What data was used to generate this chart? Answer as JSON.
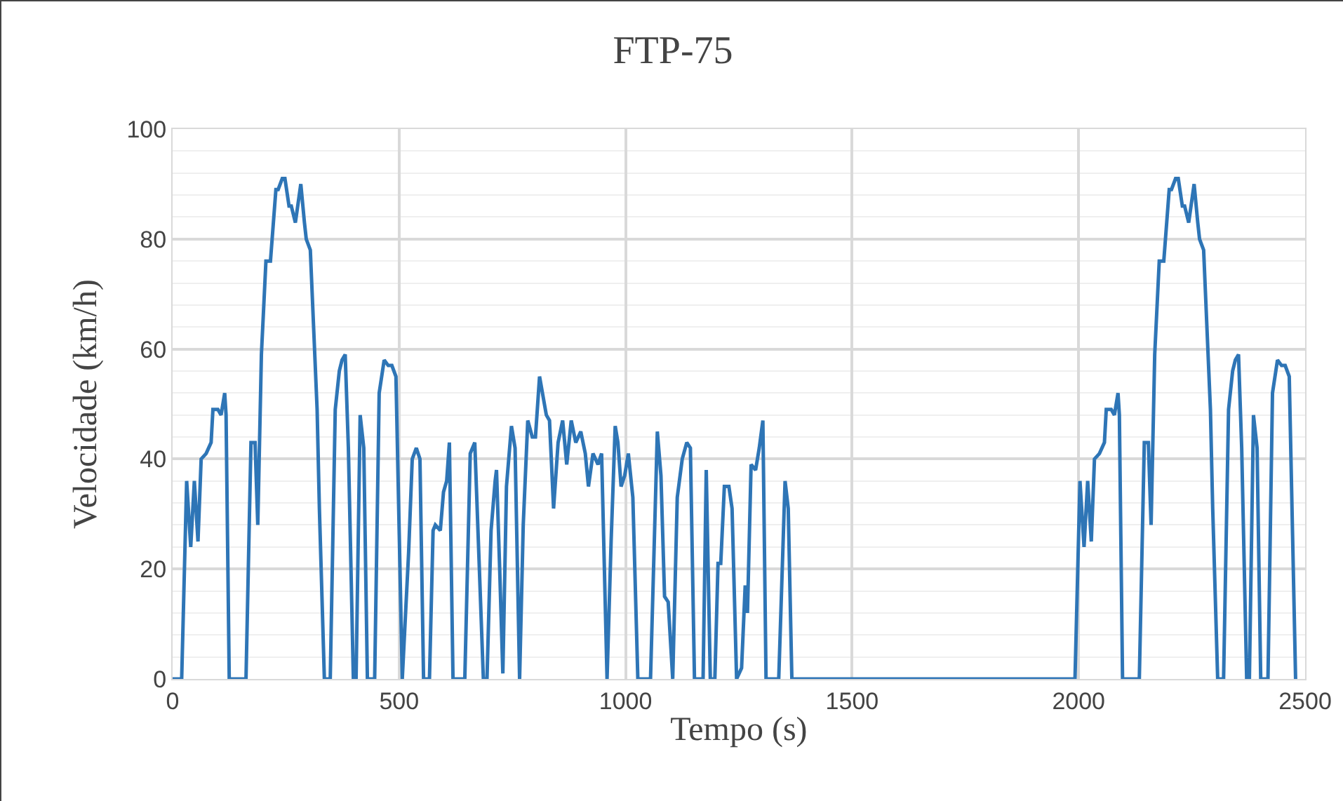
{
  "chart_data": {
    "type": "line",
    "title": "FTP-75",
    "xlabel": "Tempo (s)",
    "ylabel": "Velocidade (km/h)",
    "xlim": [
      0,
      2500
    ],
    "xticks": [
      0,
      500,
      1000,
      1500,
      2000,
      2500
    ],
    "ylim": [
      0,
      100
    ],
    "yticks": [
      0,
      20,
      40,
      60,
      80,
      100
    ],
    "grid": true,
    "legend": false,
    "marker": "none",
    "line_style": "solid",
    "series": [
      {
        "color": "#2e75b6",
        "x": [
          0,
          20,
          31,
          40,
          48,
          56,
          63,
          74,
          85,
          89,
          100,
          107,
          115,
          118,
          125,
          162,
          173,
          182,
          188,
          196,
          206,
          216,
          228,
          233,
          242,
          248,
          257,
          262,
          271,
          283,
          291,
          295,
          304,
          319,
          324,
          335,
          348,
          359,
          368,
          374,
          381,
          388,
          399,
          405,
          414,
          422,
          430,
          446,
          456,
          467,
          476,
          484,
          493,
          507,
          521,
          529,
          538,
          546,
          554,
          567,
          575,
          580,
          591,
          598,
          605,
          611,
          619,
          645,
          657,
          667,
          686,
          694,
          703,
          712,
          715,
          722,
          729,
          737,
          748,
          756,
          766,
          774,
          784,
          794,
          801,
          810,
          825,
          832,
          841,
          851,
          861,
          870,
          880,
          890,
          901,
          911,
          918,
          928,
          939,
          947,
          959,
          968,
          977,
          983,
          990,
          998,
          1006,
          1016,
          1027,
          1055,
          1070,
          1078,
          1086,
          1094,
          1104,
          1114,
          1125,
          1135,
          1143,
          1152,
          1171,
          1178,
          1187,
          1197,
          1204,
          1210,
          1218,
          1228,
          1235,
          1245,
          1256,
          1264,
          1269,
          1277,
          1287,
          1295,
          1303,
          1310,
          1338,
          1352,
          1359,
          1367,
          1992,
          2003,
          2012,
          2020,
          2028,
          2035,
          2046,
          2057,
          2061,
          2072,
          2079,
          2087,
          2090,
          2097,
          2134,
          2145,
          2154,
          2160,
          2168,
          2178,
          2188,
          2200,
          2205,
          2214,
          2220,
          2229,
          2234,
          2243,
          2255,
          2263,
          2267,
          2276,
          2291,
          2296,
          2307,
          2320,
          2331,
          2340,
          2346,
          2353,
          2360,
          2371,
          2377,
          2386,
          2394,
          2402,
          2418,
          2428,
          2439,
          2448,
          2456,
          2465,
          2479
        ],
        "values": [
          0,
          0,
          36,
          24,
          36,
          25,
          40,
          41,
          43,
          49,
          49,
          48,
          52,
          48,
          0,
          0,
          43,
          43,
          28,
          59,
          76,
          76,
          89,
          89,
          91,
          91,
          86,
          86,
          83,
          90,
          83,
          80,
          78,
          49,
          31,
          0,
          0,
          49,
          56,
          58,
          59,
          42,
          0,
          0,
          48,
          42,
          0,
          0,
          52,
          58,
          57,
          57,
          55,
          0,
          23,
          40,
          42,
          40,
          0,
          0,
          27,
          28,
          27,
          34,
          36,
          43,
          0,
          0,
          41,
          43,
          0,
          0,
          27,
          36,
          38,
          20,
          1,
          35,
          46,
          42,
          0,
          28,
          47,
          44,
          44,
          55,
          48,
          47,
          31,
          43,
          47,
          39,
          47,
          43,
          45,
          41,
          35,
          41,
          39,
          41,
          0,
          25,
          46,
          43,
          35,
          37,
          41,
          33,
          0,
          0,
          45,
          37,
          15,
          14,
          0,
          33,
          40,
          43,
          42,
          0,
          0,
          38,
          0,
          0,
          21,
          21,
          35,
          35,
          31,
          0,
          2,
          17,
          12,
          39,
          38,
          42,
          47,
          0,
          0,
          36,
          31,
          0,
          0,
          36,
          24,
          36,
          25,
          40,
          41,
          43,
          49,
          49,
          48,
          52,
          48,
          0,
          0,
          43,
          43,
          28,
          59,
          76,
          76,
          89,
          89,
          91,
          91,
          86,
          86,
          83,
          90,
          83,
          80,
          78,
          49,
          31,
          0,
          0,
          49,
          56,
          58,
          59,
          42,
          0,
          0,
          48,
          42,
          0,
          0,
          52,
          58,
          57,
          57,
          55,
          0
        ]
      }
    ]
  }
}
